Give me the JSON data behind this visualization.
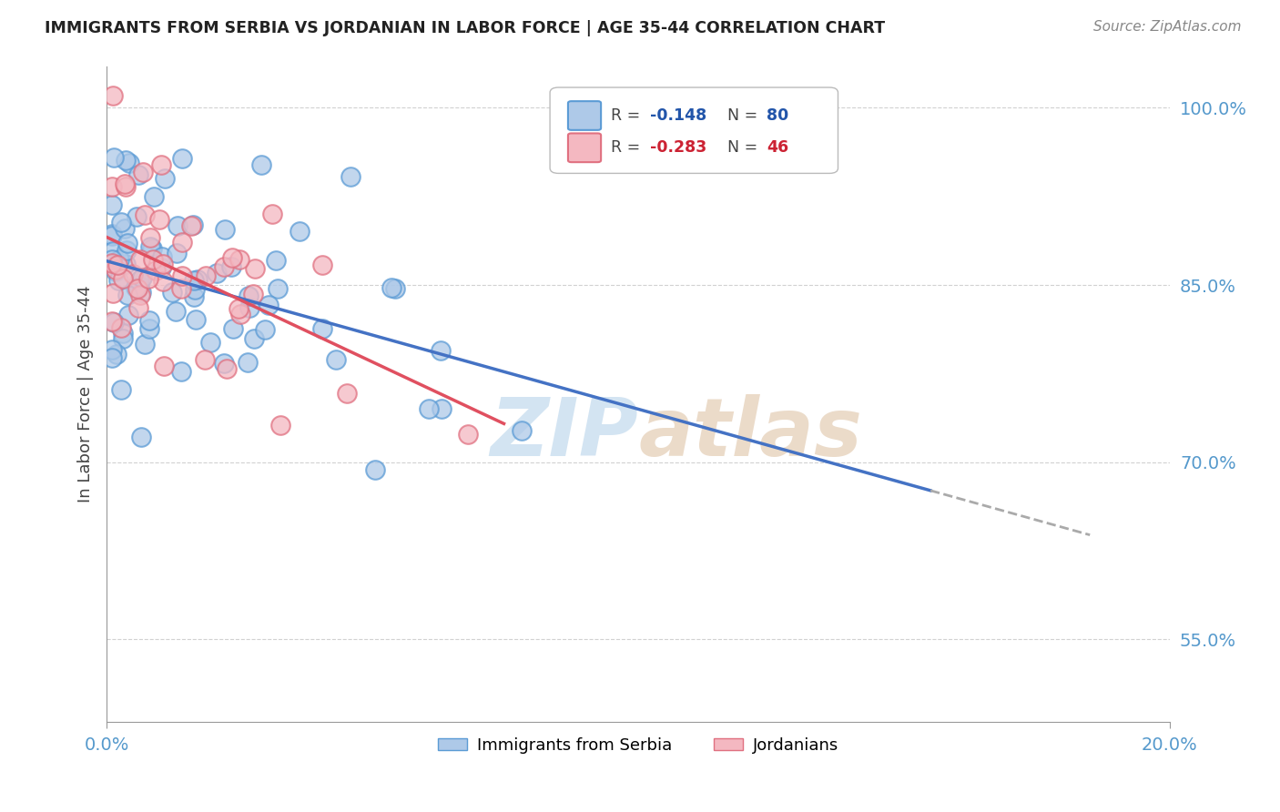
{
  "title": "IMMIGRANTS FROM SERBIA VS JORDANIAN IN LABOR FORCE | AGE 35-44 CORRELATION CHART",
  "source": "Source: ZipAtlas.com",
  "ylabel": "In Labor Force | Age 35-44",
  "xlim": [
    0.0,
    0.2
  ],
  "ylim": [
    0.48,
    1.035
  ],
  "xticks": [
    0.0,
    0.2
  ],
  "xticklabels": [
    "0.0%",
    "20.0%"
  ],
  "yticks": [
    0.55,
    0.7,
    0.85,
    1.0
  ],
  "yticklabels": [
    "55.0%",
    "70.0%",
    "85.0%",
    "100.0%"
  ],
  "blue_scatter_fc": "#aec9e8",
  "blue_scatter_ec": "#5b9bd5",
  "pink_scatter_fc": "#f4b8c1",
  "pink_scatter_ec": "#e07080",
  "blue_line_color": "#4472c4",
  "pink_line_color": "#e05060",
  "dash_line_color": "#aaaaaa",
  "legend_R_blue": "-0.148",
  "legend_N_blue": "80",
  "legend_R_pink": "-0.283",
  "legend_N_pink": "46",
  "watermark_zip_color": "#cce0f0",
  "watermark_atlas_color": "#e8d5c0",
  "blue_R": -0.148,
  "blue_N": 80,
  "pink_R": -0.283,
  "pink_N": 46,
  "blue_seed": 42,
  "pink_seed": 77
}
